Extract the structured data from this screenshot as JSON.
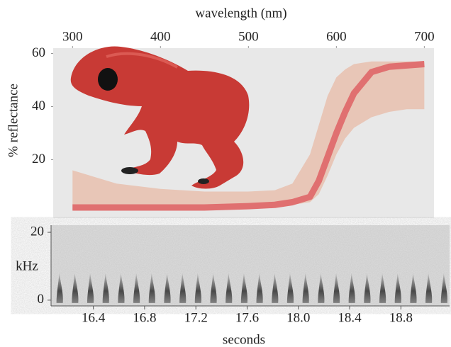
{
  "chart_data": [
    {
      "type": "line",
      "xlabel": "wavelength (nm)",
      "ylabel": "% reflectance",
      "x": [
        300,
        350,
        400,
        450,
        500,
        530,
        550,
        570,
        580,
        590,
        600,
        610,
        620,
        640,
        660,
        680,
        700
      ],
      "values": [
        2,
        2,
        2,
        2,
        2.5,
        3,
        4,
        6,
        12,
        21,
        30,
        38,
        45,
        53,
        55,
        55.5,
        56
      ],
      "color": "#e07070",
      "band_upper": [
        16,
        11,
        9,
        8,
        8,
        8.5,
        11,
        22,
        33,
        44,
        51,
        54,
        56,
        57,
        57,
        57,
        57
      ],
      "band_lower": [
        1,
        1,
        1,
        1,
        1.5,
        2,
        3,
        4,
        7,
        14,
        22,
        28,
        32,
        36,
        38,
        39,
        39
      ],
      "band_color": "#e8bfae",
      "xlim": [
        278,
        711
      ],
      "xticks": [
        300,
        400,
        500,
        600,
        700
      ],
      "ylim": [
        -2,
        62
      ],
      "yticks": [
        20,
        40,
        60
      ]
    },
    {
      "type": "spectrogram",
      "xlabel": "seconds",
      "ylabel": "kHz",
      "x": [
        16.14,
        16.26,
        16.38,
        16.5,
        16.62,
        16.74,
        16.86,
        16.98,
        17.1,
        17.22,
        17.34,
        17.46,
        17.58,
        17.7,
        17.82,
        17.94,
        18.06,
        18.18,
        18.3,
        18.42,
        18.54,
        18.66,
        18.78,
        18.9,
        19.02,
        19.14
      ],
      "values": [
        8,
        8,
        8,
        8,
        8,
        8,
        8,
        8,
        8,
        8,
        8,
        8,
        8,
        8,
        8,
        8,
        8,
        8,
        8,
        8,
        8,
        8,
        8,
        8,
        8,
        8
      ],
      "color": "#303030",
      "xlim": [
        16.07,
        19.18
      ],
      "xticks": [
        16.4,
        16.8,
        17.2,
        17.6,
        {
          "value": 18,
          "label": "18.0"
        },
        18.4,
        18.8
      ],
      "ylim": [
        -1.7,
        22.1
      ],
      "yticks": [
        0,
        20
      ]
    }
  ]
}
